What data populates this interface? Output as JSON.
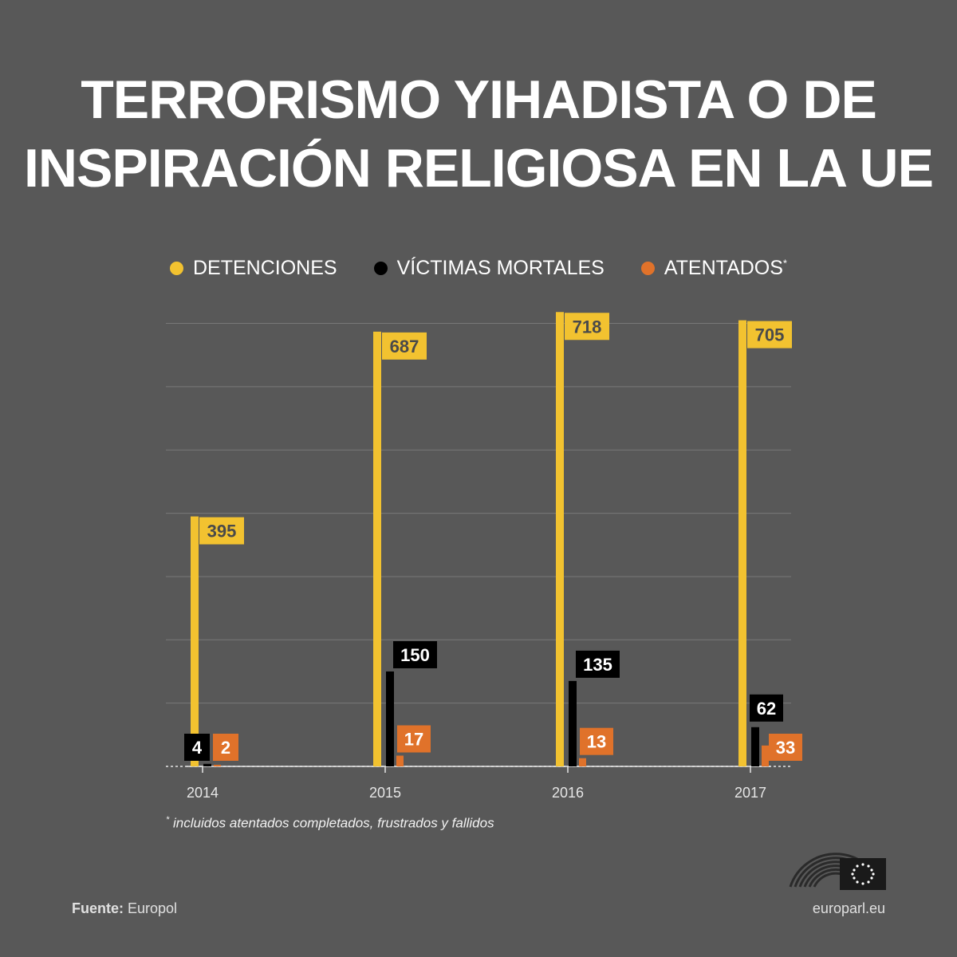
{
  "title_line1": "TERRORISMO YIHADISTA O DE",
  "title_line2": "INSPIRACIÓN RELIGIOSA EN LA UE",
  "legend": [
    {
      "label": "DETENCIONES",
      "color": "#f2c230",
      "sup": ""
    },
    {
      "label": "VÍCTIMAS MORTALES",
      "color": "#000000",
      "sup": ""
    },
    {
      "label": "ATENTADOS",
      "color": "#e0722a",
      "sup": "*"
    }
  ],
  "chart_data": {
    "type": "bar",
    "categories": [
      "2014",
      "2015",
      "2016",
      "2017"
    ],
    "series": [
      {
        "name": "DETENCIONES",
        "color": "#f2c230",
        "values": [
          395,
          687,
          718,
          705
        ]
      },
      {
        "name": "VÍCTIMAS MORTALES",
        "color": "#000000",
        "values": [
          4,
          150,
          135,
          62
        ]
      },
      {
        "name": "ATENTADOS",
        "color": "#e0722a",
        "values": [
          2,
          17,
          13,
          33
        ]
      }
    ],
    "ylim": [
      0,
      700
    ],
    "grid": true
  },
  "footnote_mark": "*",
  "footnote": "incluidos atentados completados, frustrados y fallidos",
  "source_label": "Fuente:",
  "source_value": "Europol",
  "site": "europarl.eu"
}
